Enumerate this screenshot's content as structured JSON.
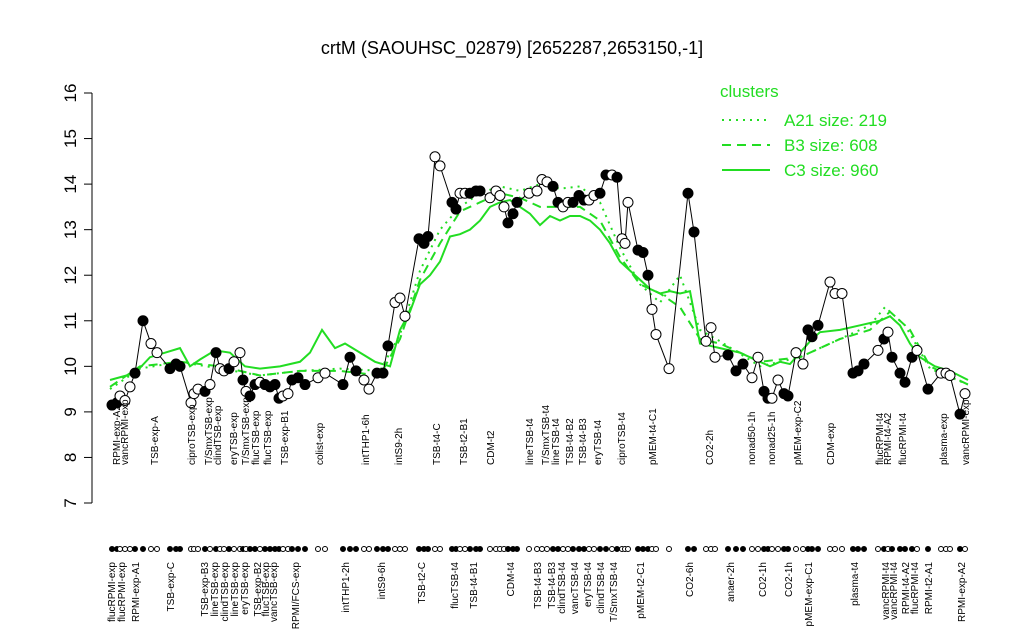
{
  "chart_data": {
    "type": "line",
    "title": "crtM (SAOUHSC_02879) [2652287,2653150,-1]",
    "xlim": [
      100,
      975
    ],
    "ylim": [
      7,
      16
    ],
    "yticks": [
      7,
      8,
      9,
      10,
      11,
      12,
      13,
      14,
      15,
      16
    ],
    "legend_title": "clusters",
    "legend_corner": "top-right",
    "points": {
      "x": [
        112,
        117,
        120,
        125,
        130,
        135,
        143,
        151,
        157,
        170,
        176,
        180,
        191,
        194,
        198,
        205,
        210,
        216,
        220,
        224,
        229,
        234,
        240,
        243,
        246,
        250,
        255,
        260,
        265,
        270,
        275,
        279,
        283,
        288,
        292,
        298,
        305,
        318,
        325,
        343,
        350,
        356,
        364,
        369,
        377,
        383,
        388,
        395,
        400,
        405,
        419,
        424,
        428,
        435,
        440,
        452,
        456,
        460,
        465,
        470,
        476,
        480,
        490,
        496,
        500,
        504,
        508,
        513,
        517,
        529,
        537,
        542,
        547,
        553,
        558,
        563,
        568,
        573,
        579,
        584,
        589,
        594,
        600,
        606,
        612,
        617,
        622,
        625,
        628,
        638,
        643,
        648,
        652,
        656,
        669,
        688,
        694,
        706,
        711,
        715,
        728,
        736,
        743,
        752,
        758,
        764,
        768,
        772,
        778,
        784,
        788,
        796,
        803,
        808,
        812,
        818,
        830,
        835,
        842,
        853,
        858,
        864,
        878,
        884,
        888,
        892,
        900,
        905,
        912,
        917,
        928,
        941,
        946,
        950,
        960,
        965
      ],
      "values": [
        9.15,
        9.2,
        9.35,
        9.25,
        9.55,
        9.85,
        11.0,
        10.5,
        10.3,
        9.95,
        10.05,
        10.0,
        9.2,
        9.4,
        9.5,
        9.45,
        9.6,
        10.3,
        9.95,
        9.9,
        9.95,
        10.1,
        10.3,
        9.7,
        9.45,
        9.35,
        9.6,
        9.65,
        9.6,
        9.55,
        9.6,
        9.3,
        9.35,
        9.4,
        9.7,
        9.75,
        9.6,
        9.75,
        9.85,
        9.6,
        10.2,
        9.9,
        9.7,
        9.5,
        9.85,
        9.85,
        10.45,
        11.4,
        11.5,
        11.1,
        12.8,
        12.7,
        12.85,
        14.6,
        14.4,
        13.6,
        13.45,
        13.8,
        13.8,
        13.8,
        13.85,
        13.85,
        13.7,
        13.85,
        13.75,
        13.5,
        13.15,
        13.35,
        13.6,
        13.8,
        13.85,
        14.1,
        14.05,
        13.95,
        13.6,
        13.5,
        13.6,
        13.6,
        13.75,
        13.65,
        13.65,
        13.75,
        13.8,
        14.2,
        14.2,
        14.15,
        12.8,
        12.7,
        13.6,
        12.55,
        12.5,
        12.0,
        11.25,
        10.7,
        9.95,
        13.8,
        12.95,
        10.55,
        10.85,
        10.2,
        10.25,
        9.9,
        10.05,
        9.75,
        10.2,
        9.45,
        9.3,
        9.3,
        9.7,
        9.4,
        9.35,
        10.3,
        10.05,
        10.8,
        10.65,
        10.9,
        11.85,
        11.6,
        11.6,
        9.85,
        9.9,
        10.05,
        10.35,
        10.6,
        10.75,
        10.2,
        9.85,
        9.65,
        10.2,
        10.35,
        9.5,
        9.85,
        9.85,
        9.8,
        8.95,
        9.4
      ],
      "filled": [
        1,
        1,
        0,
        0,
        0,
        1,
        1,
        0,
        0,
        1,
        1,
        1,
        0,
        0,
        0,
        1,
        0,
        1,
        0,
        0,
        1,
        0,
        0,
        1,
        0,
        1,
        1,
        0,
        1,
        1,
        1,
        1,
        0,
        0,
        1,
        1,
        1,
        0,
        0,
        1,
        1,
        1,
        0,
        0,
        1,
        1,
        1,
        0,
        0,
        0,
        1,
        1,
        1,
        0,
        0,
        1,
        1,
        0,
        0,
        1,
        1,
        1,
        0,
        0,
        0,
        0,
        1,
        1,
        1,
        0,
        0,
        0,
        0,
        1,
        1,
        0,
        0,
        1,
        1,
        1,
        0,
        0,
        1,
        1,
        0,
        1,
        0,
        0,
        0,
        1,
        1,
        1,
        0,
        0,
        0,
        1,
        1,
        0,
        0,
        0,
        1,
        1,
        1,
        0,
        0,
        1,
        1,
        0,
        0,
        1,
        1,
        0,
        0,
        1,
        1,
        1,
        0,
        0,
        0,
        1,
        1,
        1,
        0,
        1,
        0,
        1,
        1,
        1,
        1,
        0,
        1,
        0,
        0,
        0,
        1,
        0
      ]
    },
    "series": [
      {
        "name": "A21 size: 219",
        "color": "#22dd22",
        "dash": "2,5",
        "x": [
          110,
          140,
          180,
          220,
          260,
          300,
          340,
          380,
          400,
          420,
          440,
          460,
          480,
          500,
          520,
          540,
          560,
          580,
          600,
          620,
          640,
          660,
          680,
          700,
          720,
          760,
          800,
          840,
          870,
          885,
          905,
          930,
          968
        ],
        "values": [
          9.5,
          9.95,
          10.1,
          9.95,
          9.8,
          9.9,
          9.95,
          9.9,
          10.7,
          12.1,
          13.0,
          13.5,
          13.8,
          13.95,
          13.85,
          14.0,
          13.9,
          13.95,
          13.6,
          12.6,
          11.8,
          11.4,
          12.0,
          10.8,
          10.55,
          10.0,
          10.2,
          10.6,
          10.9,
          11.3,
          10.9,
          9.95,
          9.6
        ]
      },
      {
        "name": "B3 size: 608",
        "color": "#22dd22",
        "dash": "9,6",
        "x": [
          110,
          140,
          180,
          220,
          260,
          300,
          340,
          380,
          400,
          420,
          440,
          460,
          480,
          500,
          520,
          540,
          560,
          580,
          600,
          620,
          640,
          660,
          680,
          700,
          720,
          760,
          800,
          840,
          870,
          890,
          910,
          930,
          968
        ],
        "values": [
          9.55,
          10.0,
          10.1,
          10.0,
          9.8,
          9.9,
          9.9,
          9.8,
          10.6,
          11.9,
          12.7,
          13.4,
          13.6,
          13.8,
          13.7,
          13.5,
          13.5,
          13.5,
          13.2,
          12.4,
          11.8,
          11.6,
          11.3,
          10.6,
          10.5,
          10.1,
          10.2,
          10.6,
          10.8,
          11.2,
          10.8,
          10.0,
          9.6
        ]
      },
      {
        "name": "C3 size: 960",
        "color": "#22dd22",
        "dash": "none",
        "x": [
          110,
          135,
          150,
          165,
          180,
          190,
          200,
          215,
          230,
          245,
          260,
          280,
          300,
          310,
          322,
          335,
          345,
          360,
          375,
          390,
          400,
          410,
          420,
          430,
          440,
          450,
          460,
          470,
          480,
          490,
          500,
          510,
          520,
          530,
          540,
          550,
          560,
          570,
          580,
          590,
          600,
          610,
          620,
          630,
          640,
          650,
          660,
          670,
          680,
          690,
          700,
          710,
          720,
          740,
          760,
          770,
          780,
          790,
          800,
          810,
          820,
          840,
          860,
          880,
          890,
          900,
          910,
          920,
          935,
          950,
          968
        ],
        "values": [
          9.7,
          9.85,
          10.2,
          10.3,
          10.4,
          10.0,
          10.15,
          10.35,
          10.3,
          10.0,
          9.95,
          10.0,
          10.1,
          10.3,
          10.8,
          10.4,
          10.5,
          10.3,
          10.1,
          10.0,
          10.8,
          11.2,
          11.8,
          12.0,
          12.3,
          12.85,
          12.9,
          13.0,
          13.2,
          13.5,
          13.6,
          13.65,
          13.5,
          13.35,
          13.1,
          13.3,
          13.2,
          13.3,
          13.3,
          13.2,
          13.0,
          12.7,
          12.3,
          12.1,
          11.9,
          11.7,
          11.6,
          11.65,
          11.6,
          11.65,
          10.5,
          10.45,
          10.4,
          10.3,
          10.1,
          10.0,
          10.1,
          10.05,
          10.3,
          10.55,
          10.75,
          10.8,
          10.9,
          11.0,
          11.1,
          10.9,
          10.5,
          10.2,
          10.0,
          9.9,
          9.7
        ]
      }
    ],
    "labels_top": {
      "x": [
        117,
        125,
        155,
        192,
        209,
        218,
        234,
        246,
        256,
        268,
        285,
        320,
        366,
        399,
        437,
        464,
        491,
        530,
        546,
        556,
        570,
        583,
        598,
        622,
        653,
        710,
        752,
        772,
        798,
        831,
        880,
        888,
        903,
        944,
        966
      ],
      "labels": [
        "RPMI-exp-A2",
        "vancRPMI-exp",
        "TSB-exp-A",
        "ciproTSB-exp",
        "T/SmxTSB-exp",
        "clindTSB-exp",
        "eryTSB-exp",
        "T/SmxTSB-exp",
        "flucTSB-exp",
        "flucTSB-exp",
        "TSB-exp-B1",
        "colist-exp",
        "intTHP1-6h",
        "intS9-2h",
        "TSB-t4-C",
        "TSB-t2-B1",
        "CDM-t2",
        "lineTSB-t4",
        "T/SmxTSB-t4",
        "lineTSB-t4",
        "TSB-t4-B2",
        "TSB-t4-B3",
        "eryTSB-t4",
        "ciproTSB-t4",
        "pMEM-t4-C1",
        "CO2-2h",
        "nonad50-1h",
        "nonad25-1h",
        "pMEM-exp-C2",
        "CDM-exp",
        "flucRPMI-t4",
        "RPMI-t4-A2",
        "flucRPMI-t4",
        "plasma-exp",
        "vancRPMI-exp"
      ]
    },
    "labels_bottom": {
      "x": [
        112,
        122,
        136,
        171,
        205,
        215,
        225,
        235,
        245,
        258,
        266,
        274,
        296,
        346,
        382,
        422,
        455,
        474,
        511,
        538,
        552,
        562,
        575,
        588,
        601,
        614,
        641,
        690,
        731,
        763,
        789,
        809,
        855,
        886,
        894,
        906,
        915,
        929,
        962
      ],
      "labels": [
        "flucRPMI-exp",
        "flucRPMI-exp",
        "RPMI-exp-A1",
        "TSB-exp-C",
        "TSB-exp-B3",
        "lineTSB-exp",
        "clindTSB-exp",
        "lineTSB-exp",
        "eryTSB-exp",
        "TSB-exp-B2",
        "flucTSB-exp",
        "vancTSB-exp",
        "RPMI/FCS-exp",
        "intTHP1-2h",
        "intS9-6h",
        "TSB-t2-C",
        "flucTSB-t4",
        "TSB-t4-B1",
        "CDM-t4",
        "TSB-t4-B3",
        "TSB-t4-B3",
        "clindTSB-t4",
        "vancTSB-t4",
        "eryTSB-t4",
        "clindTSB-t4",
        "T/SmxTSB-t4",
        "pMEM-t2-C1",
        "CO2-6h",
        "anaer-2h",
        "CO2-1h",
        "CO2-1h",
        "pMEM-exp-C1",
        "plasma-t4",
        "vancRPMI-t4",
        "vancRPMI-t4",
        "RPMI-t4-A2",
        "flucRPMI-t4",
        "RPMI-t2-A1",
        "RPMI-exp-A2"
      ]
    }
  }
}
